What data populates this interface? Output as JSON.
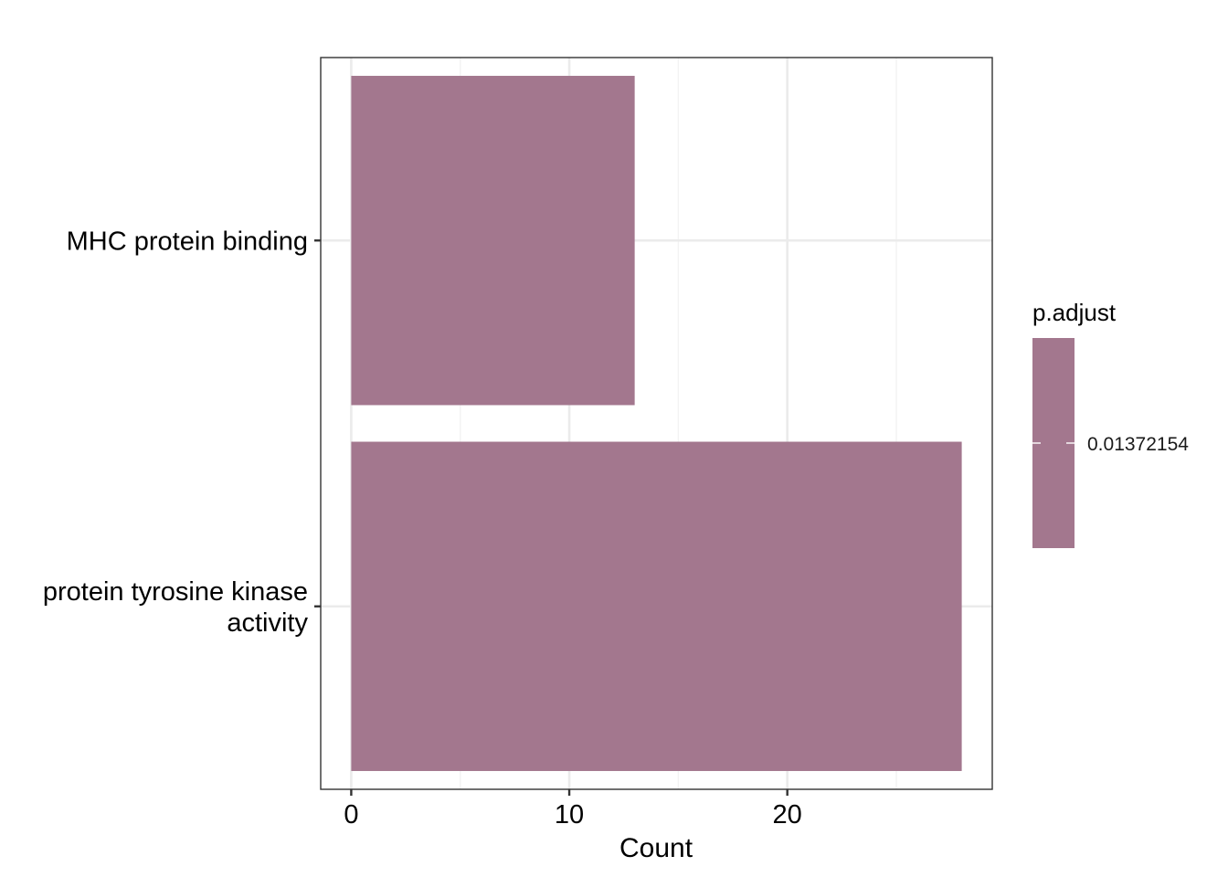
{
  "chart_data": {
    "type": "bar",
    "orientation": "horizontal",
    "categories": [
      "MHC protein binding",
      "protein tyrosine kinase\nactivity"
    ],
    "values": [
      13,
      28
    ],
    "p_adjust": [
      0.01372154,
      0.01372154
    ],
    "bar_color": "#a3778e",
    "xlabel": "Count",
    "ylabel": "",
    "xlim": [
      -1.4,
      29.4
    ],
    "x_ticks": [
      0,
      10,
      20
    ],
    "x_minor_ticks": [
      5,
      15,
      25
    ],
    "grid": true,
    "legend": {
      "title": "p.adjust",
      "position": "right",
      "labels": [
        "0.01372154"
      ],
      "color": "#a3778e"
    }
  }
}
